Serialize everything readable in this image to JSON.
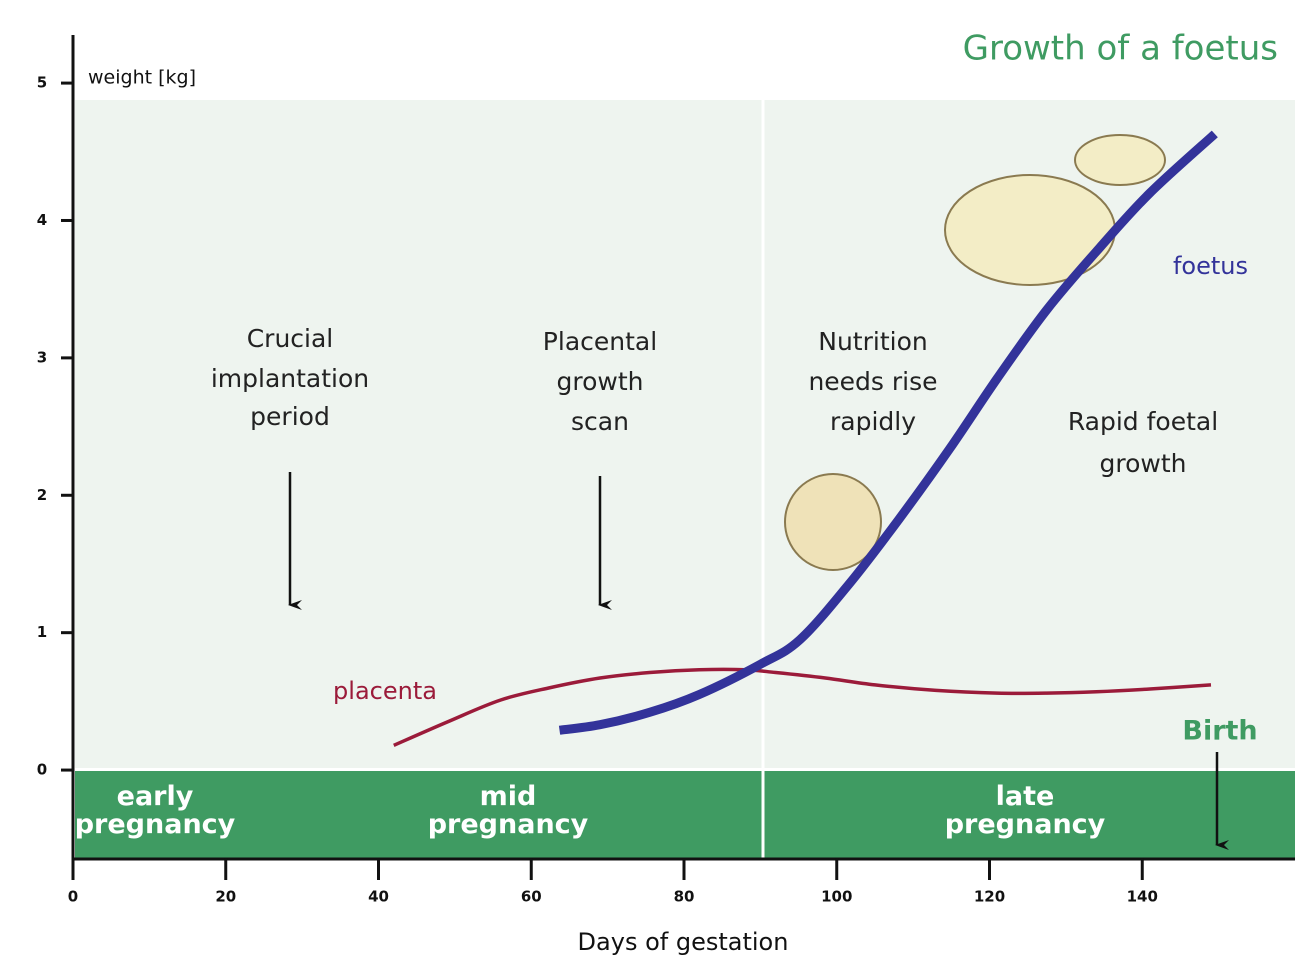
{
  "chart_data": {
    "type": "line",
    "title": "Growth of a foetus",
    "ylabel": "weight [kg]",
    "xlabel": "Days of gestation",
    "xlim": [
      0,
      160
    ],
    "xticks": [
      0,
      20,
      40,
      60,
      80,
      100,
      120,
      140
    ],
    "ylim": [
      -0.64,
      5.35
    ],
    "yticks": [
      0,
      1,
      2,
      3,
      4,
      5
    ],
    "series": [
      {
        "name": "foetus",
        "color": "#33339a",
        "x": [
          63.7,
          69,
          75.5,
          82,
          90,
          95.2,
          101.7,
          108.2,
          114.8,
          121,
          127.5,
          134.4,
          141,
          149.5
        ],
        "values": [
          0.29,
          0.33,
          0.42,
          0.55,
          0.77,
          0.95,
          1.36,
          1.83,
          2.34,
          2.85,
          3.35,
          3.8,
          4.2,
          4.63
        ]
      },
      {
        "name": "placenta",
        "color": "#9b1b3a",
        "x": [
          42,
          49,
          56,
          62.5,
          69,
          75.5,
          82,
          88,
          92,
          98.5,
          105,
          113,
          121,
          127.5,
          134,
          141,
          149
        ],
        "values": [
          0.18,
          0.35,
          0.51,
          0.6,
          0.67,
          0.71,
          0.73,
          0.73,
          0.71,
          0.67,
          0.62,
          0.58,
          0.56,
          0.56,
          0.57,
          0.59,
          0.62
        ]
      }
    ],
    "annotations": [
      [
        "Crucial",
        "implantation",
        "period"
      ],
      [
        "Placental",
        "growth",
        "scan"
      ],
      [
        "Nutrition",
        "needs rise",
        "rapidly"
      ],
      [
        "Rapid foetal",
        "growth"
      ],
      [
        "Birth"
      ]
    ],
    "phases": [
      [
        "early",
        "pregnancy"
      ],
      [
        "mid",
        "pregnancy"
      ],
      [
        "late",
        "pregnancy"
      ]
    ]
  }
}
